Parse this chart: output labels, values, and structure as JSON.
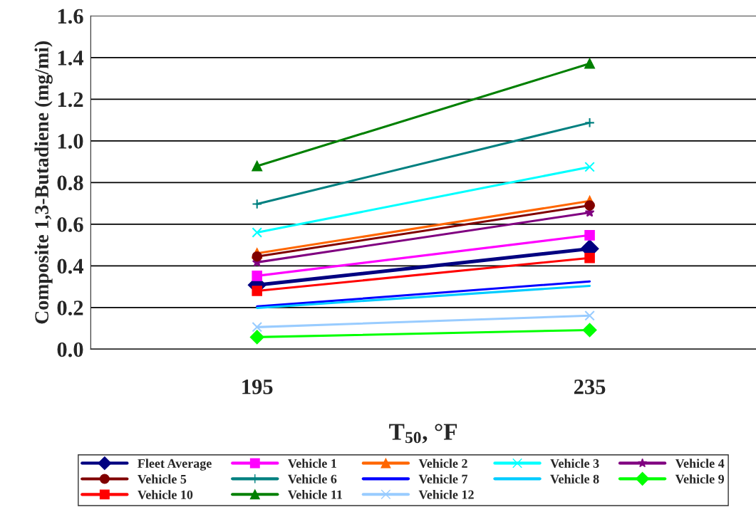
{
  "chart_data": {
    "type": "line",
    "xlabel": "T$_{50}$, °F",
    "ylabel": "Composite 1,3-Butadiene (mg/mi)",
    "categories": [
      "195",
      "235"
    ],
    "ylim": [
      0,
      1.6
    ],
    "yticks": [
      {
        "value": 0,
        "label": "0.0"
      },
      0.2,
      0.4,
      0.6,
      0.8,
      {
        "value": 1,
        "label": "1.0"
      },
      1.2,
      1.4,
      1.6
    ],
    "grid": "y",
    "legend": "bottom",
    "series": [
      {
        "name": "Fleet Average",
        "color": "#000080",
        "marker": "diamond",
        "values": [
          0.308,
          0.482
        ]
      },
      {
        "name": "Vehicle 1",
        "color": "#ff00ff",
        "marker": "square",
        "values": [
          0.352,
          0.547
        ]
      },
      {
        "name": "Vehicle 2",
        "color": "#ff6600",
        "marker": "triangle",
        "values": [
          0.46,
          0.711
        ]
      },
      {
        "name": "Vehicle 3",
        "color": "#00ffff",
        "marker": "cross",
        "values": [
          0.56,
          0.875
        ]
      },
      {
        "name": "Vehicle 4",
        "color": "#800080",
        "marker": "star",
        "values": [
          0.417,
          0.656
        ]
      },
      {
        "name": "Vehicle 5",
        "color": "#800000",
        "marker": "circle",
        "values": [
          0.445,
          0.69
        ]
      },
      {
        "name": "Vehicle 6",
        "color": "#008080",
        "marker": "plus",
        "values": [
          0.697,
          1.087
        ]
      },
      {
        "name": "Vehicle 7",
        "color": "#0000ff",
        "marker": "none",
        "values": [
          0.205,
          0.325
        ]
      },
      {
        "name": "Vehicle 8",
        "color": "#00ccff",
        "marker": "none",
        "values": [
          0.198,
          0.304
        ]
      },
      {
        "name": "Vehicle 9",
        "color": "#00ff00",
        "marker": "diamond",
        "values": [
          0.058,
          0.092
        ]
      },
      {
        "name": "Vehicle 10",
        "color": "#ff0000",
        "marker": "square",
        "values": [
          0.28,
          0.438
        ]
      },
      {
        "name": "Vehicle 11",
        "color": "#008000",
        "marker": "triangle",
        "values": [
          0.879,
          1.371
        ]
      },
      {
        "name": "Vehicle 12",
        "color": "#99ccff",
        "marker": "cross",
        "values": [
          0.106,
          0.161
        ]
      }
    ]
  }
}
